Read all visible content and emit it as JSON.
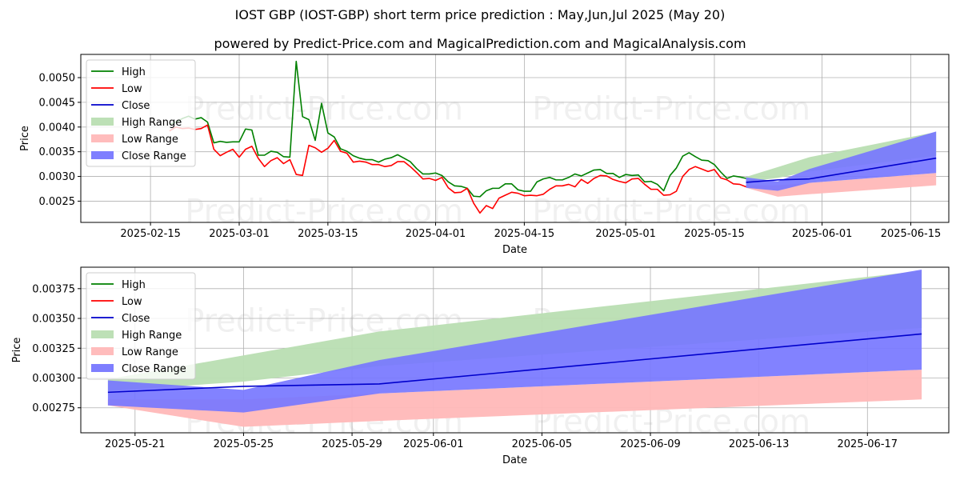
{
  "title": "IOST GBP (IOST-GBP) short term price prediction : May,Jun,Jul 2025 (May 20)",
  "subtitle": "powered by Predict-Price.com and MagicalPrediction.com and MagicalAnalysis.com",
  "watermark": "Predict-Price.com",
  "colors": {
    "high": "#008000",
    "low": "#ff0000",
    "close": "#0000cc",
    "high_range": "#b9deb2",
    "low_range": "#ffb8b8",
    "close_range": "#7777ff"
  },
  "chart_data": [
    {
      "type": "line",
      "title": "",
      "xlabel": "Date",
      "ylabel": "Price",
      "xlim": [
        "2025-02-04",
        "2025-06-21"
      ],
      "ylim": [
        0.00207,
        0.00547
      ],
      "x_ticks": [
        "2025-02-15",
        "2025-03-01",
        "2025-03-15",
        "2025-04-01",
        "2025-04-15",
        "2025-05-01",
        "2025-05-15",
        "2025-06-01",
        "2025-06-15"
      ],
      "y_ticks": [
        "0.0025",
        "0.0030",
        "0.0035",
        "0.0040",
        "0.0045",
        "0.0050"
      ],
      "legend": [
        "High",
        "Low",
        "Close",
        "High Range",
        "Low Range",
        "Close Range"
      ],
      "legend_position": "top-left",
      "grid": true,
      "series": [
        {
          "name": "High",
          "x": [
            "2025-02-18",
            "2025-02-19",
            "2025-02-20",
            "2025-02-21",
            "2025-02-22",
            "2025-02-23",
            "2025-02-24",
            "2025-02-25",
            "2025-02-26",
            "2025-02-27",
            "2025-02-28",
            "2025-03-01",
            "2025-03-02",
            "2025-03-03",
            "2025-03-04",
            "2025-03-05",
            "2025-03-06",
            "2025-03-07",
            "2025-03-08",
            "2025-03-09",
            "2025-03-10",
            "2025-03-11",
            "2025-03-12",
            "2025-03-13",
            "2025-03-14",
            "2025-03-15",
            "2025-03-16",
            "2025-03-17",
            "2025-03-18",
            "2025-03-19",
            "2025-03-20",
            "2025-03-21",
            "2025-03-22",
            "2025-03-23",
            "2025-03-24",
            "2025-03-25",
            "2025-03-26",
            "2025-03-27",
            "2025-03-28",
            "2025-03-29",
            "2025-03-30",
            "2025-03-31",
            "2025-04-01",
            "2025-04-02",
            "2025-04-03",
            "2025-04-04",
            "2025-04-05",
            "2025-04-06",
            "2025-04-07",
            "2025-04-08",
            "2025-04-09",
            "2025-04-10",
            "2025-04-11",
            "2025-04-12",
            "2025-04-13",
            "2025-04-14",
            "2025-04-15",
            "2025-04-16",
            "2025-04-17",
            "2025-04-18",
            "2025-04-19",
            "2025-04-20",
            "2025-04-21",
            "2025-04-22",
            "2025-04-23",
            "2025-04-24",
            "2025-04-25",
            "2025-04-26",
            "2025-04-27",
            "2025-04-28",
            "2025-04-29",
            "2025-04-30",
            "2025-05-01",
            "2025-05-02",
            "2025-05-03",
            "2025-05-04",
            "2025-05-05",
            "2025-05-06",
            "2025-05-07",
            "2025-05-08",
            "2025-05-09",
            "2025-05-10",
            "2025-05-11",
            "2025-05-12",
            "2025-05-13",
            "2025-05-14",
            "2025-05-15",
            "2025-05-16",
            "2025-05-17",
            "2025-05-18",
            "2025-05-19",
            "2025-05-20"
          ],
          "y": [
            0.00405,
            0.0041,
            0.00417,
            0.00422,
            0.00416,
            0.00419,
            0.0041,
            0.00368,
            0.00371,
            0.00369,
            0.0037,
            0.0037,
            0.00396,
            0.00394,
            0.00343,
            0.00343,
            0.00351,
            0.00349,
            0.0034,
            0.00339,
            0.00533,
            0.00421,
            0.00415,
            0.00373,
            0.00448,
            0.00388,
            0.0038,
            0.00356,
            0.00351,
            0.00342,
            0.00337,
            0.00334,
            0.00334,
            0.00329,
            0.00335,
            0.00338,
            0.00344,
            0.00337,
            0.0033,
            0.00316,
            0.00305,
            0.00305,
            0.00307,
            0.00302,
            0.00289,
            0.00281,
            0.0028,
            0.00276,
            0.0026,
            0.00259,
            0.00271,
            0.00276,
            0.00276,
            0.00285,
            0.00285,
            0.00273,
            0.0027,
            0.0027,
            0.00289,
            0.00295,
            0.00298,
            0.00293,
            0.00293,
            0.00298,
            0.00305,
            0.00301,
            0.00307,
            0.00313,
            0.00314,
            0.00306,
            0.00306,
            0.00298,
            0.00304,
            0.00302,
            0.00303,
            0.00289,
            0.0029,
            0.00284,
            0.00271,
            0.00302,
            0.00317,
            0.00341,
            0.00348,
            0.0034,
            0.00333,
            0.00332,
            0.00324,
            0.00309,
            0.00296,
            0.00301,
            0.00299,
            0.00296
          ]
        },
        {
          "name": "Low",
          "x": [
            "2025-02-18",
            "2025-02-19",
            "2025-02-20",
            "2025-02-21",
            "2025-02-22",
            "2025-02-23",
            "2025-02-24",
            "2025-02-25",
            "2025-02-26",
            "2025-02-27",
            "2025-02-28",
            "2025-03-01",
            "2025-03-02",
            "2025-03-03",
            "2025-03-04",
            "2025-03-05",
            "2025-03-06",
            "2025-03-07",
            "2025-03-08",
            "2025-03-09",
            "2025-03-10",
            "2025-03-11",
            "2025-03-12",
            "2025-03-13",
            "2025-03-14",
            "2025-03-15",
            "2025-03-16",
            "2025-03-17",
            "2025-03-18",
            "2025-03-19",
            "2025-03-20",
            "2025-03-21",
            "2025-03-22",
            "2025-03-23",
            "2025-03-24",
            "2025-03-25",
            "2025-03-26",
            "2025-03-27",
            "2025-03-28",
            "2025-03-29",
            "2025-03-30",
            "2025-03-31",
            "2025-04-01",
            "2025-04-02",
            "2025-04-03",
            "2025-04-04",
            "2025-04-05",
            "2025-04-06",
            "2025-04-07",
            "2025-04-08",
            "2025-04-09",
            "2025-04-10",
            "2025-04-11",
            "2025-04-12",
            "2025-04-13",
            "2025-04-14",
            "2025-04-15",
            "2025-04-16",
            "2025-04-17",
            "2025-04-18",
            "2025-04-19",
            "2025-04-20",
            "2025-04-21",
            "2025-04-22",
            "2025-04-23",
            "2025-04-24",
            "2025-04-25",
            "2025-04-26",
            "2025-04-27",
            "2025-04-28",
            "2025-04-29",
            "2025-04-30",
            "2025-05-01",
            "2025-05-02",
            "2025-05-03",
            "2025-05-04",
            "2025-05-05",
            "2025-05-06",
            "2025-05-07",
            "2025-05-08",
            "2025-05-09",
            "2025-05-10",
            "2025-05-11",
            "2025-05-12",
            "2025-05-13",
            "2025-05-14",
            "2025-05-15",
            "2025-05-16",
            "2025-05-17",
            "2025-05-18",
            "2025-05-19",
            "2025-05-20"
          ],
          "y": [
            0.00392,
            0.004,
            0.00397,
            0.00398,
            0.00395,
            0.00397,
            0.00404,
            0.00355,
            0.00342,
            0.00349,
            0.00355,
            0.00339,
            0.00355,
            0.00361,
            0.00337,
            0.0032,
            0.00332,
            0.00338,
            0.00326,
            0.00334,
            0.00304,
            0.00302,
            0.00363,
            0.00358,
            0.00349,
            0.00357,
            0.00373,
            0.00351,
            0.00347,
            0.00329,
            0.00331,
            0.00329,
            0.00324,
            0.00324,
            0.0032,
            0.00322,
            0.0033,
            0.0033,
            0.0032,
            0.00308,
            0.00295,
            0.00296,
            0.00292,
            0.00298,
            0.00277,
            0.00267,
            0.00268,
            0.00276,
            0.00246,
            0.00226,
            0.00241,
            0.00235,
            0.00256,
            0.00262,
            0.00268,
            0.00266,
            0.00261,
            0.00262,
            0.00261,
            0.00264,
            0.00274,
            0.00281,
            0.00281,
            0.00284,
            0.00279,
            0.00294,
            0.00286,
            0.00296,
            0.00302,
            0.00301,
            0.00294,
            0.0029,
            0.00287,
            0.00295,
            0.00296,
            0.00284,
            0.00274,
            0.00274,
            0.00262,
            0.00263,
            0.0027,
            0.003,
            0.00314,
            0.0032,
            0.00315,
            0.0031,
            0.00314,
            0.00297,
            0.00293,
            0.00285,
            0.00284,
            0.00279
          ]
        },
        {
          "name": "Close",
          "x": [
            "2025-05-20",
            "2025-05-25",
            "2025-05-30",
            "2025-06-19"
          ],
          "y": [
            0.00288,
            0.00293,
            0.00295,
            0.00337
          ]
        },
        {
          "name": "High Range",
          "x": [
            "2025-05-20",
            "2025-05-25",
            "2025-05-30",
            "2025-06-19"
          ],
          "upper": [
            0.00299,
            0.00319,
            0.00339,
            0.0039
          ],
          "lower": [
            0.00289,
            0.00297,
            0.0031,
            0.00342
          ]
        },
        {
          "name": "Low Range",
          "x": [
            "2025-05-20",
            "2025-05-25",
            "2025-05-30",
            "2025-06-19"
          ],
          "upper": [
            0.00282,
            0.00282,
            0.00287,
            0.00307
          ],
          "lower": [
            0.00277,
            0.00259,
            0.00264,
            0.00282
          ]
        },
        {
          "name": "Close Range",
          "x": [
            "2025-05-20",
            "2025-05-25",
            "2025-05-30",
            "2025-06-19"
          ],
          "upper": [
            0.00298,
            0.0029,
            0.00315,
            0.00391
          ],
          "lower": [
            0.00277,
            0.00271,
            0.00287,
            0.00307
          ]
        }
      ]
    },
    {
      "type": "line",
      "title": "",
      "xlabel": "Date",
      "ylabel": "Price",
      "xlim": [
        "2025-05-19",
        "2025-06-20"
      ],
      "ylim": [
        0.00254,
        0.00393
      ],
      "x_ticks": [
        "2025-05-21",
        "2025-05-25",
        "2025-05-29",
        "2025-06-01",
        "2025-06-05",
        "2025-06-09",
        "2025-06-13",
        "2025-06-17"
      ],
      "y_ticks": [
        "0.00275",
        "0.00300",
        "0.00325",
        "0.00350",
        "0.00375"
      ],
      "legend": [
        "High",
        "Low",
        "Close",
        "High Range",
        "Low Range",
        "Close Range"
      ],
      "legend_position": "top-left",
      "grid": true,
      "series": [
        {
          "name": "Close",
          "x": [
            "2025-05-20",
            "2025-05-25",
            "2025-05-30",
            "2025-06-19"
          ],
          "y": [
            0.00288,
            0.00293,
            0.00295,
            0.00337
          ]
        },
        {
          "name": "High Range",
          "x": [
            "2025-05-20",
            "2025-05-25",
            "2025-05-30",
            "2025-06-19"
          ],
          "upper": [
            0.00299,
            0.00319,
            0.00339,
            0.0039
          ],
          "lower": [
            0.00289,
            0.00297,
            0.0031,
            0.00342
          ]
        },
        {
          "name": "Low Range",
          "x": [
            "2025-05-20",
            "2025-05-25",
            "2025-05-30",
            "2025-06-19"
          ],
          "upper": [
            0.00282,
            0.00282,
            0.00287,
            0.00307
          ],
          "lower": [
            0.00277,
            0.00259,
            0.00264,
            0.00282
          ]
        },
        {
          "name": "Close Range",
          "x": [
            "2025-05-20",
            "2025-05-25",
            "2025-05-30",
            "2025-06-19"
          ],
          "upper": [
            0.00298,
            0.0029,
            0.00315,
            0.00391
          ],
          "lower": [
            0.00277,
            0.00271,
            0.00287,
            0.00307
          ]
        }
      ]
    }
  ]
}
